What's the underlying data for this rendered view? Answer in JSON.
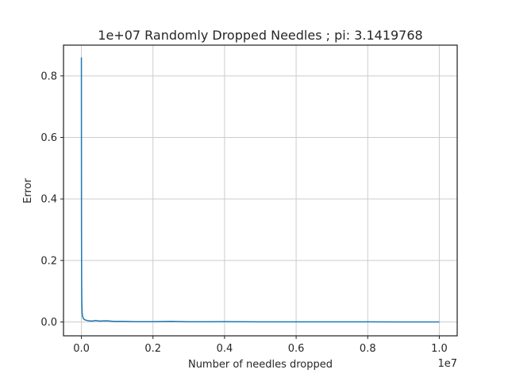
{
  "chart_data": {
    "type": "line",
    "title": "1e+07 Randomly Dropped Needles ; pi: 3.1419768",
    "xlabel": "Number of needles dropped",
    "ylabel": "Error",
    "x_offset_label": "1e7",
    "xlim": [
      -0.05,
      1.05
    ],
    "ylim": [
      -0.045,
      0.9
    ],
    "xticks": [
      0.0,
      0.2,
      0.4,
      0.6,
      0.8,
      1.0
    ],
    "xtick_labels": [
      "0.0",
      "0.2",
      "0.4",
      "0.6",
      "0.8",
      "1.0"
    ],
    "yticks": [
      0.0,
      0.2,
      0.4,
      0.6,
      0.8
    ],
    "ytick_labels": [
      "0.0",
      "0.2",
      "0.4",
      "0.6",
      "0.8"
    ],
    "grid": true,
    "series": [
      {
        "color": "#1f77b4",
        "x": [
          0.0,
          0.0001,
          0.0003,
          0.0006,
          0.001,
          0.0015,
          0.002,
          0.003,
          0.005,
          0.008,
          0.012,
          0.02,
          0.03,
          0.04,
          0.05,
          0.07,
          0.09,
          0.12,
          0.15,
          0.2,
          0.25,
          0.3,
          0.35,
          0.4,
          0.5,
          0.6,
          0.7,
          0.8,
          0.9,
          1.0
        ],
        "y": [
          0.86,
          0.6,
          0.3,
          0.15,
          0.08,
          0.05,
          0.03,
          0.02,
          0.012,
          0.008,
          0.006,
          0.004,
          0.003,
          0.005,
          0.003,
          0.004,
          0.002,
          0.002,
          0.001,
          0.001,
          0.002,
          0.0008,
          0.0006,
          0.001,
          0.0005,
          0.0004,
          0.0003,
          0.0003,
          0.0002,
          0.0002
        ]
      }
    ]
  }
}
